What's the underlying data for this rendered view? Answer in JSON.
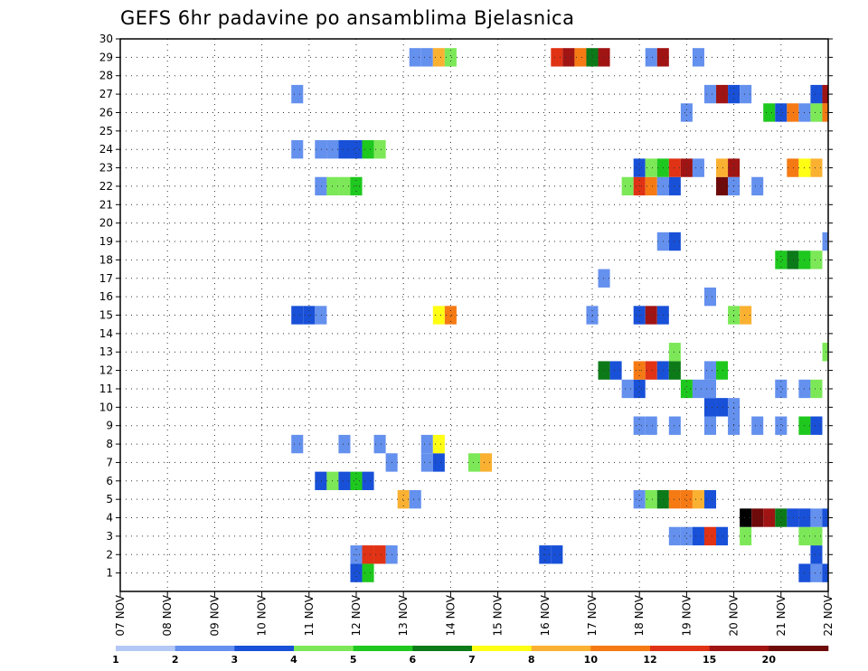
{
  "chart_data": {
    "type": "heatmap",
    "title": "GEFS 6hr padavine po ansamblima Bjelasnica",
    "xlabel": "",
    "ylabel": "",
    "x_tick_labels": [
      "07 NOV",
      "08 NOV",
      "09 NOV",
      "10 NOV",
      "11 NOV",
      "12 NOV",
      "13 NOV",
      "14 NOV",
      "15 NOV",
      "16 NOV",
      "17 NOV",
      "18 NOV",
      "19 NOV",
      "20 NOV",
      "21 NOV",
      "22 NOV"
    ],
    "y_tick_labels": [
      "1",
      "2",
      "3",
      "4",
      "5",
      "6",
      "7",
      "8",
      "9",
      "10",
      "11",
      "12",
      "13",
      "14",
      "15",
      "16",
      "17",
      "18",
      "19",
      "20",
      "21",
      "22",
      "23",
      "24",
      "25",
      "26",
      "27",
      "28",
      "29",
      "30"
    ],
    "x_range_days": [
      0,
      15
    ],
    "y_range": [
      0,
      30
    ],
    "steps_per_day": 4,
    "grid": true,
    "legend_placement": "bottom",
    "colorbar": {
      "labels": [
        "1",
        "2",
        "3",
        "4",
        "5",
        "6",
        "7",
        "8",
        "10",
        "12",
        "15",
        "20"
      ],
      "colors": [
        "#b4c8f5",
        "#6490ee",
        "#1850d8",
        "#7ce858",
        "#1ec81e",
        "#0c7a18",
        "#ffff14",
        "#fab132",
        "#f57a14",
        "#e03214",
        "#a01414",
        "#6e0a0a"
      ]
    },
    "cells": [
      [
        5.0,
        1,
        2
      ],
      [
        5.0,
        2,
        1
      ],
      [
        5.25,
        1,
        4
      ],
      [
        5.25,
        2,
        9
      ],
      [
        5.5,
        2,
        9
      ],
      [
        5.75,
        2,
        1
      ],
      [
        14.5,
        1,
        2
      ],
      [
        14.75,
        1,
        1
      ],
      [
        14.75,
        2,
        2
      ],
      [
        15.0,
        1,
        2
      ],
      [
        9.0,
        2,
        2
      ],
      [
        9.25,
        2,
        2
      ],
      [
        11.75,
        3,
        1
      ],
      [
        12.0,
        3,
        1
      ],
      [
        12.25,
        3,
        2
      ],
      [
        12.5,
        3,
        9
      ],
      [
        12.75,
        3,
        2
      ],
      [
        13.25,
        3,
        3
      ],
      [
        14.5,
        3,
        3
      ],
      [
        14.75,
        3,
        3
      ],
      [
        13.25,
        4,
        12
      ],
      [
        13.5,
        4,
        11
      ],
      [
        13.75,
        4,
        10
      ],
      [
        14.0,
        4,
        5
      ],
      [
        14.25,
        4,
        2
      ],
      [
        14.5,
        4,
        2
      ],
      [
        14.75,
        4,
        1
      ],
      [
        15.0,
        4,
        2
      ],
      [
        6.0,
        5,
        7
      ],
      [
        6.25,
        5,
        1
      ],
      [
        11.0,
        5,
        1
      ],
      [
        11.25,
        5,
        3
      ],
      [
        11.5,
        5,
        5
      ],
      [
        11.75,
        5,
        8
      ],
      [
        12.0,
        5,
        8
      ],
      [
        12.25,
        5,
        7
      ],
      [
        12.5,
        5,
        2
      ],
      [
        4.25,
        6,
        2
      ],
      [
        4.5,
        6,
        3
      ],
      [
        4.75,
        6,
        2
      ],
      [
        5.0,
        6,
        4
      ],
      [
        5.25,
        6,
        2
      ],
      [
        5.75,
        7,
        1
      ],
      [
        6.5,
        7,
        1
      ],
      [
        6.75,
        7,
        2
      ],
      [
        7.5,
        7,
        3
      ],
      [
        7.75,
        7,
        7
      ],
      [
        3.75,
        8,
        1
      ],
      [
        4.75,
        8,
        1
      ],
      [
        5.5,
        8,
        1
      ],
      [
        6.5,
        8,
        1
      ],
      [
        6.75,
        8,
        6
      ],
      [
        11.0,
        9,
        1
      ],
      [
        11.25,
        9,
        1
      ],
      [
        11.75,
        9,
        1
      ],
      [
        12.5,
        9,
        1
      ],
      [
        13.0,
        9,
        1
      ],
      [
        13.5,
        9,
        1
      ],
      [
        14.0,
        9,
        1
      ],
      [
        14.5,
        9,
        4
      ],
      [
        14.75,
        9,
        2
      ],
      [
        12.5,
        10,
        2
      ],
      [
        12.75,
        10,
        2
      ],
      [
        13.0,
        10,
        1
      ],
      [
        10.75,
        11,
        1
      ],
      [
        11.0,
        11,
        2
      ],
      [
        12.0,
        11,
        4
      ],
      [
        12.25,
        11,
        1
      ],
      [
        12.5,
        11,
        1
      ],
      [
        14.0,
        11,
        1
      ],
      [
        14.5,
        11,
        1
      ],
      [
        14.75,
        11,
        3
      ],
      [
        10.25,
        12,
        5
      ],
      [
        10.5,
        12,
        2
      ],
      [
        11.0,
        12,
        8
      ],
      [
        11.25,
        12,
        9
      ],
      [
        11.5,
        12,
        2
      ],
      [
        11.75,
        12,
        5
      ],
      [
        12.5,
        12,
        1
      ],
      [
        12.75,
        12,
        4
      ],
      [
        11.75,
        13,
        3
      ],
      [
        15.0,
        13,
        3
      ],
      [
        3.75,
        15,
        2
      ],
      [
        4.0,
        15,
        2
      ],
      [
        4.25,
        15,
        1
      ],
      [
        6.75,
        15,
        6
      ],
      [
        7.0,
        15,
        8
      ],
      [
        10.0,
        15,
        1
      ],
      [
        11.0,
        15,
        2
      ],
      [
        11.25,
        15,
        10
      ],
      [
        11.5,
        15,
        2
      ],
      [
        13.0,
        15,
        3
      ],
      [
        13.25,
        15,
        7
      ],
      [
        12.5,
        16,
        1
      ],
      [
        10.25,
        17,
        1
      ],
      [
        14.0,
        18,
        4
      ],
      [
        14.25,
        18,
        5
      ],
      [
        14.5,
        18,
        4
      ],
      [
        14.75,
        18,
        3
      ],
      [
        11.5,
        19,
        1
      ],
      [
        11.75,
        19,
        2
      ],
      [
        15.0,
        19,
        1
      ],
      [
        10.75,
        22,
        3
      ],
      [
        11.0,
        22,
        9
      ],
      [
        11.25,
        22,
        8
      ],
      [
        11.5,
        22,
        1
      ],
      [
        11.75,
        22,
        2
      ],
      [
        12.75,
        22,
        11
      ],
      [
        13.0,
        22,
        1
      ],
      [
        13.5,
        22,
        1
      ],
      [
        4.25,
        22,
        1
      ],
      [
        4.5,
        22,
        3
      ],
      [
        4.75,
        22,
        3
      ],
      [
        5.0,
        22,
        4
      ],
      [
        11.0,
        23,
        2
      ],
      [
        11.25,
        23,
        3
      ],
      [
        11.5,
        23,
        4
      ],
      [
        11.75,
        23,
        9
      ],
      [
        12.0,
        23,
        10
      ],
      [
        12.25,
        23,
        1
      ],
      [
        12.75,
        23,
        7
      ],
      [
        13.0,
        23,
        10
      ],
      [
        14.25,
        23,
        8
      ],
      [
        14.5,
        23,
        6
      ],
      [
        14.75,
        23,
        7
      ],
      [
        3.75,
        24,
        1
      ],
      [
        4.25,
        24,
        1
      ],
      [
        4.5,
        24,
        1
      ],
      [
        4.75,
        24,
        2
      ],
      [
        5.0,
        24,
        2
      ],
      [
        5.25,
        24,
        4
      ],
      [
        5.5,
        24,
        3
      ],
      [
        12.0,
        26,
        1
      ],
      [
        13.75,
        26,
        4
      ],
      [
        14.0,
        26,
        2
      ],
      [
        14.25,
        26,
        8
      ],
      [
        14.5,
        26,
        1
      ],
      [
        14.75,
        26,
        3
      ],
      [
        15.0,
        26,
        8
      ],
      [
        3.75,
        27,
        1
      ],
      [
        12.5,
        27,
        1
      ],
      [
        12.75,
        27,
        10
      ],
      [
        13.0,
        27,
        2
      ],
      [
        13.25,
        27,
        1
      ],
      [
        14.75,
        27,
        2
      ],
      [
        15.0,
        27,
        10
      ],
      [
        6.25,
        29,
        1
      ],
      [
        6.5,
        29,
        1
      ],
      [
        6.75,
        29,
        7
      ],
      [
        7.0,
        29,
        3
      ],
      [
        9.25,
        29,
        9
      ],
      [
        9.5,
        29,
        10
      ],
      [
        9.75,
        29,
        8
      ],
      [
        10.0,
        29,
        5
      ],
      [
        10.25,
        29,
        10
      ],
      [
        11.25,
        29,
        1
      ],
      [
        11.5,
        29,
        10
      ],
      [
        12.25,
        29,
        1
      ]
    ]
  }
}
